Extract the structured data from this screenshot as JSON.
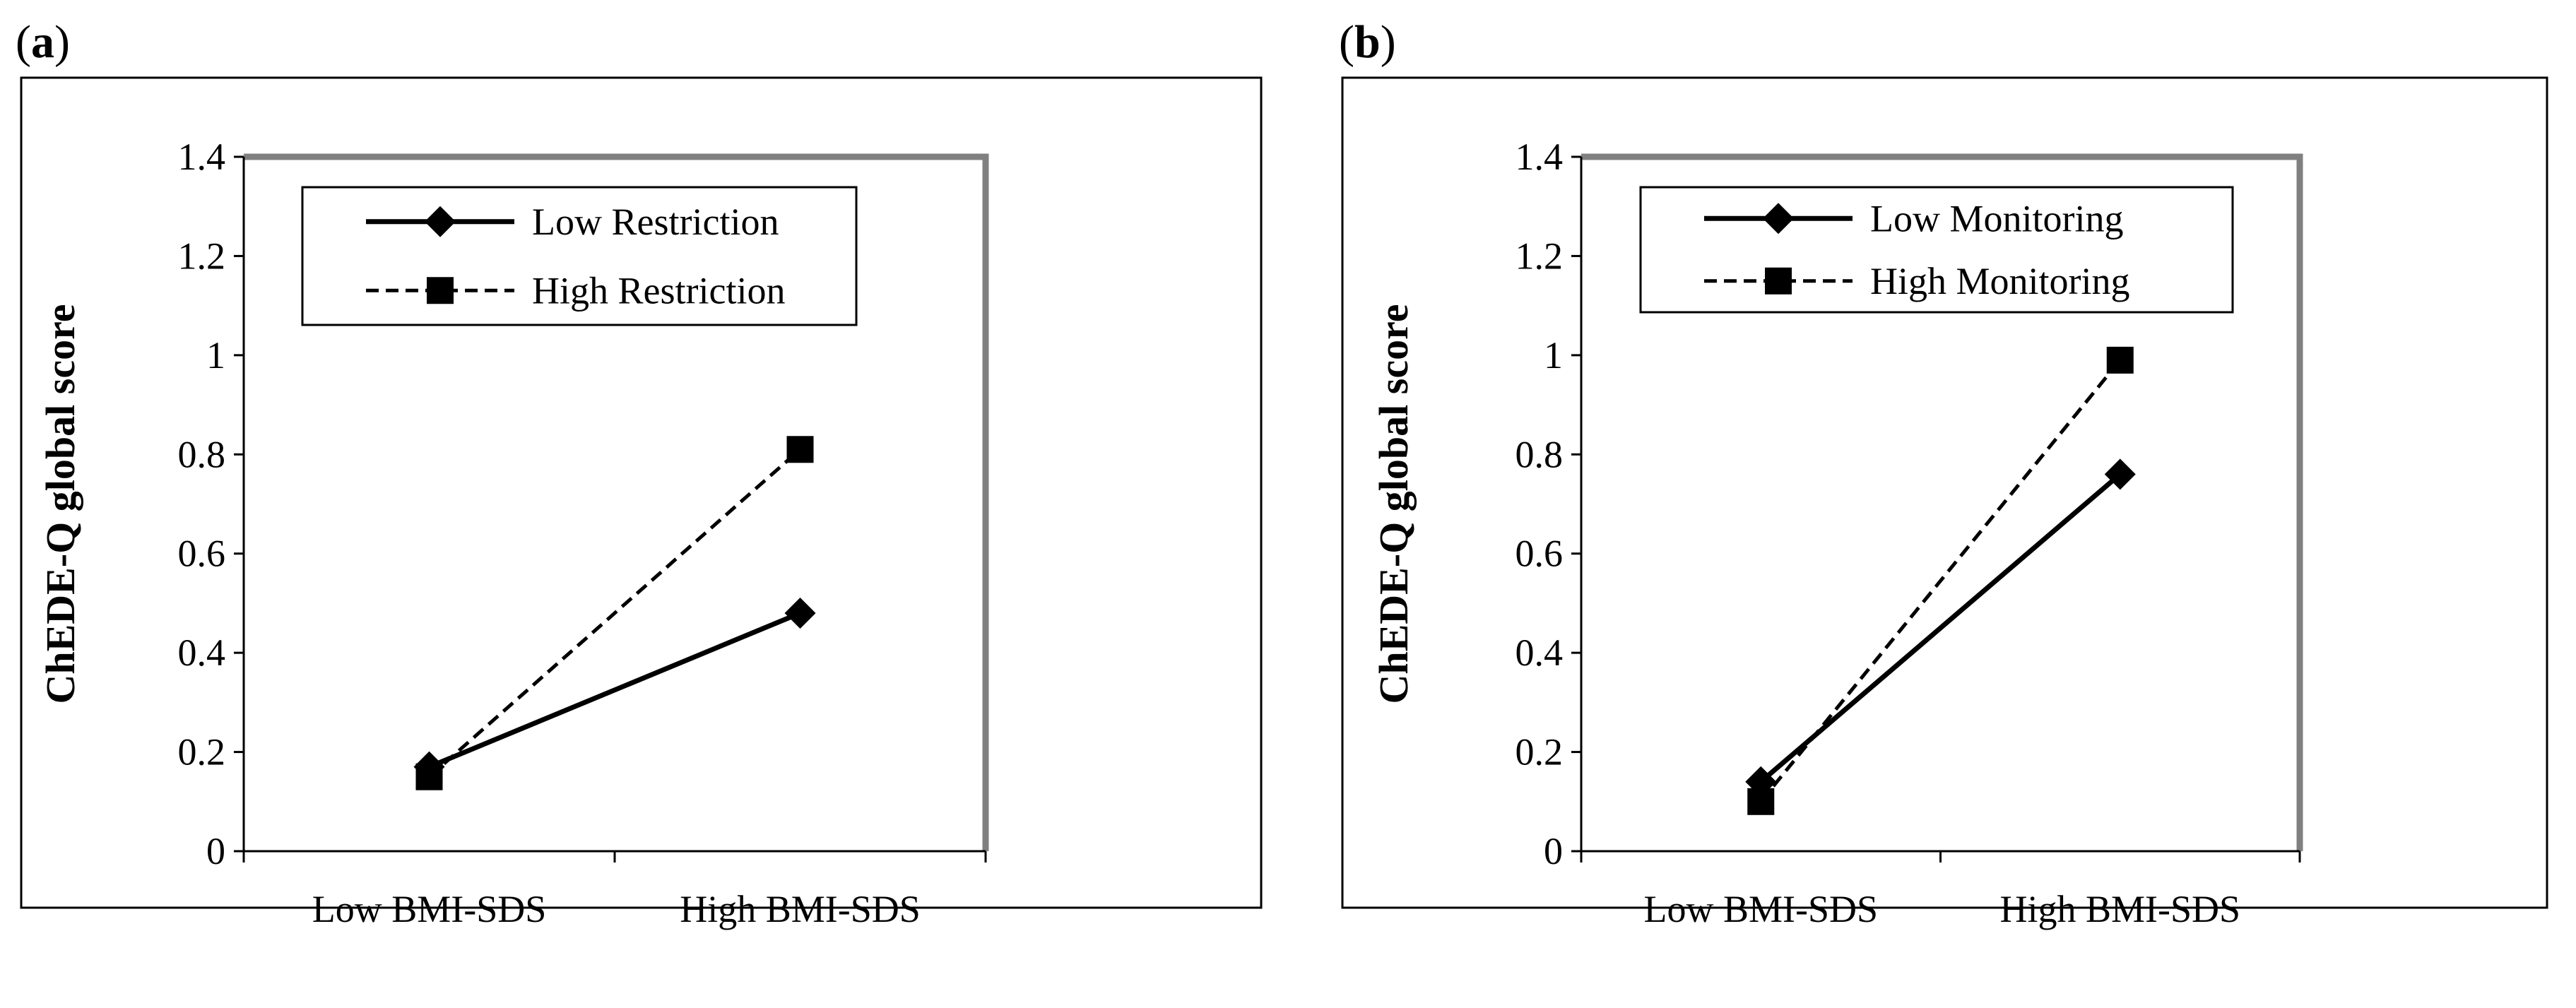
{
  "panels": [
    {
      "id": "a",
      "label_open": "(",
      "label_letter": "a",
      "label_close": ")",
      "chart_data": {
        "type": "line",
        "categories": [
          "Low BMI-SDS",
          "High BMI-SDS"
        ],
        "ylabel": "ChEDE-Q global score",
        "ylim": [
          0,
          1.4
        ],
        "yticks": [
          "0",
          "0.2",
          "0.4",
          "0.6",
          "0.8",
          "1",
          "1.2",
          "1.4"
        ],
        "series": [
          {
            "name": "Low Restriction",
            "marker": "diamond",
            "style": "solid",
            "values": [
              0.17,
              0.48
            ]
          },
          {
            "name": "High Restriction",
            "marker": "square",
            "style": "dashed",
            "values": [
              0.15,
              0.81
            ]
          }
        ]
      }
    },
    {
      "id": "b",
      "label_open": "(",
      "label_letter": "b",
      "label_close": ")",
      "chart_data": {
        "type": "line",
        "categories": [
          "Low BMI-SDS",
          "High BMI-SDS"
        ],
        "ylabel": "ChEDE-Q global score",
        "ylim": [
          0,
          1.4
        ],
        "yticks": [
          "0",
          "0.2",
          "0.4",
          "0.6",
          "0.8",
          "1",
          "1.2",
          "1.4"
        ],
        "series": [
          {
            "name": "Low Monitoring",
            "marker": "diamond",
            "style": "solid",
            "values": [
              0.14,
              0.76
            ]
          },
          {
            "name": "High Monitoring",
            "marker": "square",
            "style": "dashed",
            "values": [
              0.1,
              0.99
            ]
          }
        ]
      }
    }
  ]
}
